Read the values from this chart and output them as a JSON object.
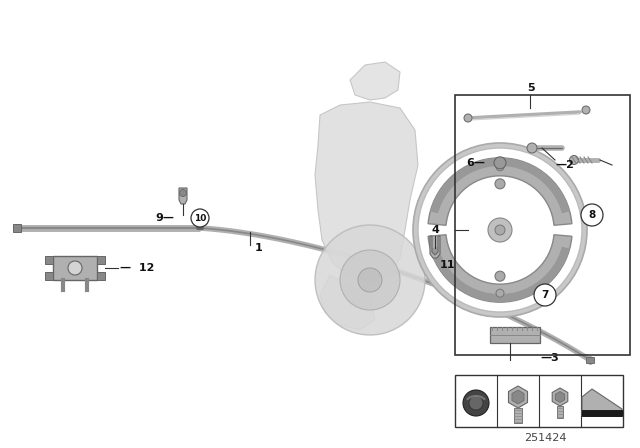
{
  "bg_color": "#ffffff",
  "diagram_number": "251424",
  "line_color": "#333333",
  "gray_light": "#d4d4d4",
  "gray_mid": "#b0b0b0",
  "gray_dark": "#888888",
  "gray_darker": "#666666",
  "black": "#111111",
  "box_outline": "#444444",
  "fig_w": 6.4,
  "fig_h": 4.48,
  "dpi": 100
}
